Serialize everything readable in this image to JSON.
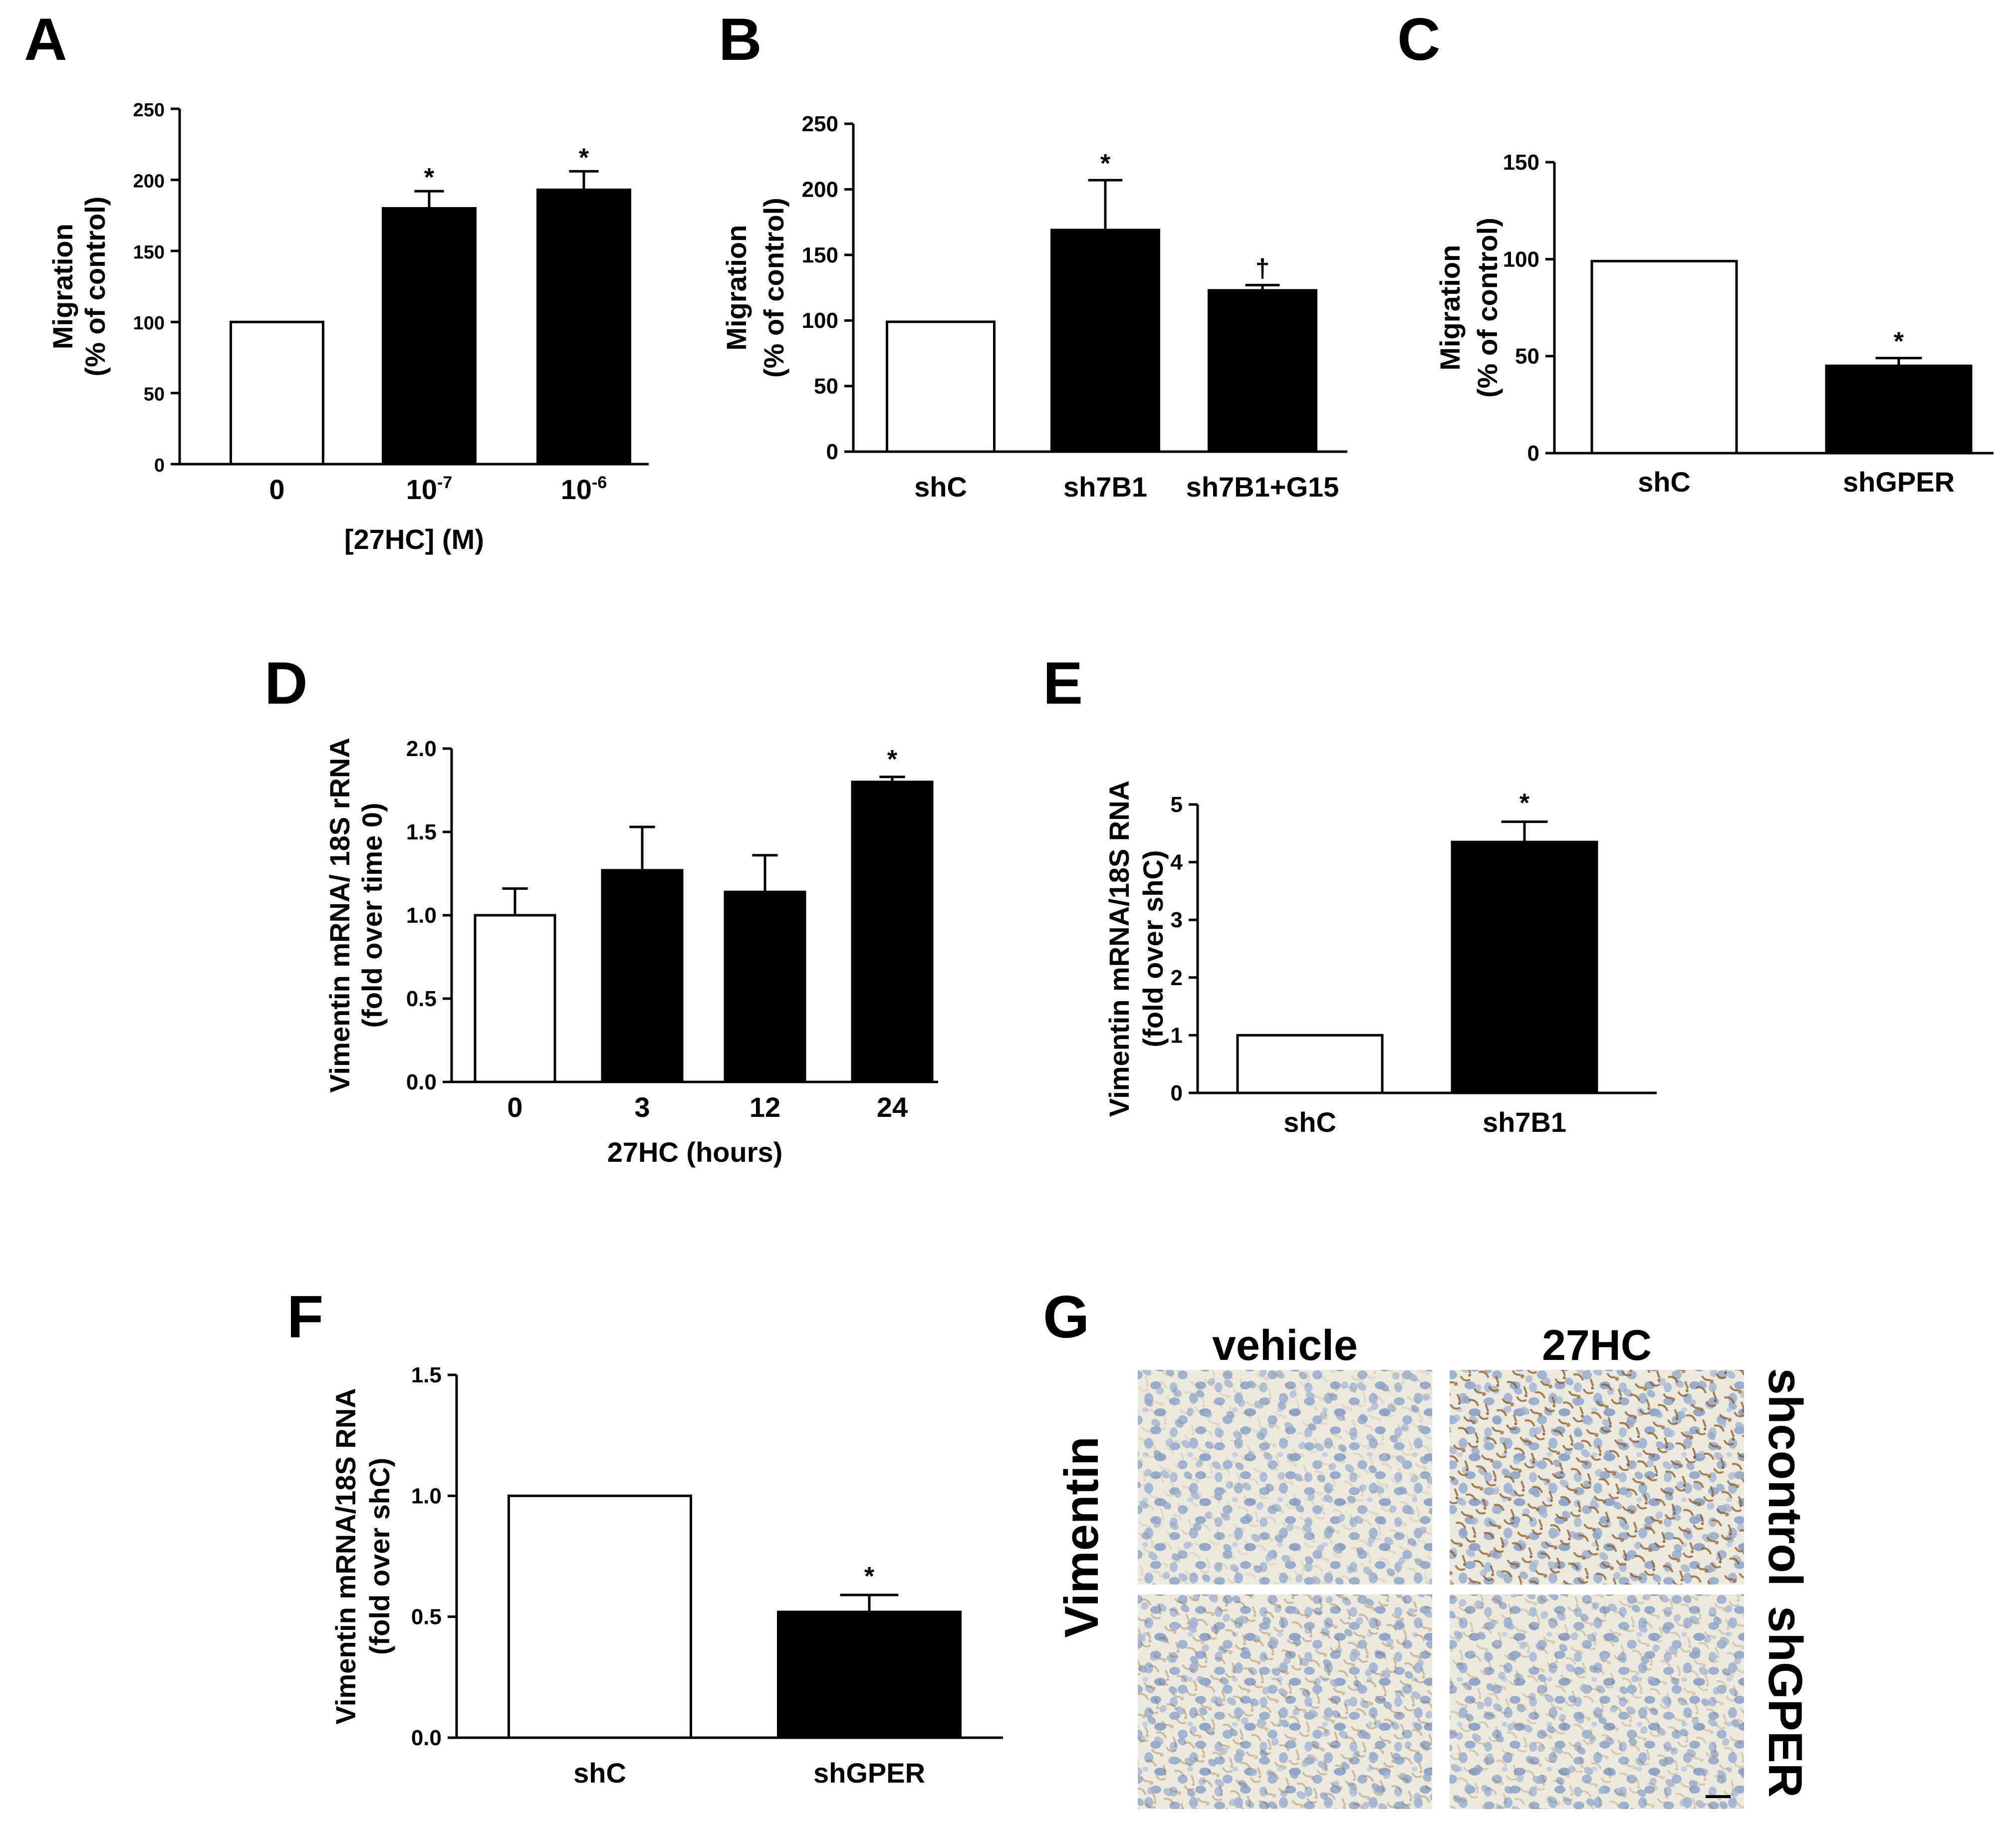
{
  "panels": [
    {
      "letter": "A",
      "chart": 0
    },
    {
      "letter": "B",
      "chart": 1
    },
    {
      "letter": "C",
      "chart": 2
    },
    {
      "letter": "D",
      "chart": 3
    },
    {
      "letter": "E",
      "chart": 4
    },
    {
      "letter": "F",
      "chart": 5
    },
    {
      "letter": "G"
    }
  ],
  "chart_data": [
    {
      "type": "bar",
      "categories": [
        "0",
        "10",
        "10"
      ],
      "category_superscripts": [
        "",
        "-7",
        "-6"
      ],
      "values": [
        100,
        180,
        193
      ],
      "errors": [
        0,
        12,
        13
      ],
      "fill": [
        "white",
        "black",
        "black"
      ],
      "annotations": [
        "",
        "*",
        "*"
      ],
      "ylabel_lines": [
        "Migration",
        "(% of control)"
      ],
      "xlabel": "[27HC] (M)",
      "ylim": [
        0,
        250
      ],
      "yticks": [
        0,
        50,
        100,
        150,
        200,
        250
      ]
    },
    {
      "type": "bar",
      "categories": [
        "shC",
        "sh7B1",
        "sh7B1+G15"
      ],
      "values": [
        99,
        169,
        123
      ],
      "errors": [
        0,
        38,
        4
      ],
      "fill": [
        "white",
        "black",
        "black"
      ],
      "annotations": [
        "",
        "*",
        "†"
      ],
      "ylabel_lines": [
        "Migration",
        "(% of control)"
      ],
      "xlabel": "",
      "ylim": [
        0,
        250
      ],
      "yticks": [
        0,
        50,
        100,
        150,
        200,
        250
      ]
    },
    {
      "type": "bar",
      "categories": [
        "shC",
        "shGPER"
      ],
      "values": [
        99,
        45
      ],
      "errors": [
        0,
        4
      ],
      "fill": [
        "white",
        "black"
      ],
      "annotations": [
        "",
        "*"
      ],
      "ylabel_lines": [
        "Migration",
        "(% of control)"
      ],
      "xlabel": "",
      "ylim": [
        0,
        150
      ],
      "yticks": [
        0,
        50,
        100,
        150
      ]
    },
    {
      "type": "bar",
      "categories": [
        "0",
        "3",
        "12",
        "24"
      ],
      "values": [
        1.0,
        1.27,
        1.14,
        1.8
      ],
      "errors": [
        0.16,
        0.26,
        0.22,
        0.03
      ],
      "fill": [
        "white",
        "black",
        "black",
        "black"
      ],
      "annotations": [
        "",
        "",
        "",
        "*"
      ],
      "ylabel_lines": [
        "Vimentin mRNA/ 18S rRNA",
        "(fold over time 0)"
      ],
      "xlabel": "27HC (hours)",
      "ylim": [
        0,
        2.0
      ],
      "yticks": [
        "0.0",
        "0.5",
        "1.0",
        "1.5",
        "2.0"
      ]
    },
    {
      "type": "bar",
      "categories": [
        "shC",
        "sh7B1"
      ],
      "values": [
        1.0,
        4.35
      ],
      "errors": [
        0,
        0.35
      ],
      "fill": [
        "white",
        "black"
      ],
      "annotations": [
        "",
        "*"
      ],
      "ylabel_lines": [
        "Vimentin mRNA/18S RNA",
        "(fold over shC)"
      ],
      "xlabel": "",
      "ylim": [
        0,
        5
      ],
      "yticks": [
        0,
        1,
        2,
        3,
        4,
        5
      ]
    },
    {
      "type": "bar",
      "categories": [
        "shC",
        "shGPER"
      ],
      "values": [
        1.0,
        0.52
      ],
      "errors": [
        0,
        0.07
      ],
      "fill": [
        "white",
        "black"
      ],
      "annotations": [
        "",
        "*"
      ],
      "ylabel_lines": [
        "Vimentin mRNA/18S RNA",
        "(fold over shC)"
      ],
      "xlabel": "",
      "ylim": [
        0,
        1.5
      ],
      "yticks": [
        "0.0",
        "0.5",
        "1.0",
        "1.5"
      ]
    }
  ],
  "panel_g": {
    "columns": [
      "vehicle",
      "27HC"
    ],
    "rows": [
      "shcontrol",
      "shGPER"
    ],
    "side_label": "Vimentin",
    "stain_colors": {
      "background": "#ebe8dc",
      "nuclei": "#8fa3c6",
      "brown": "#a0743c"
    },
    "brown_intensity": [
      [
        0.12,
        0.75
      ],
      [
        0.32,
        0.22
      ]
    ]
  }
}
